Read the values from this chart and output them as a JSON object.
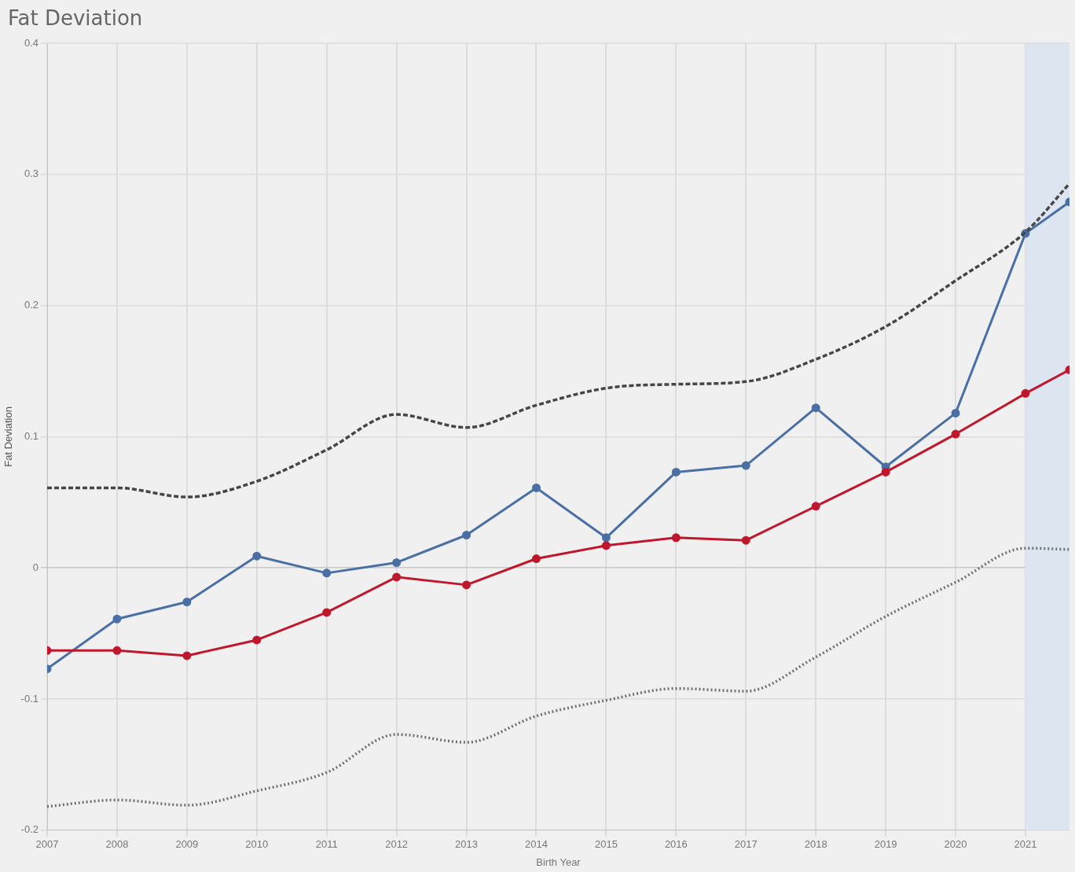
{
  "chart_data": {
    "type": "line",
    "title": "Fat Deviation",
    "xlabel": "Birth Year",
    "ylabel": "Fat Deviation",
    "xlim": [
      2007,
      2021.63
    ],
    "xticks": [
      2007,
      2008,
      2009,
      2010,
      2011,
      2012,
      2013,
      2014,
      2015,
      2016,
      2017,
      2018,
      2019,
      2020,
      2021
    ],
    "ylim": [
      -0.2,
      0.4
    ],
    "yticks": [
      -0.2,
      -0.1,
      0,
      0.1,
      0.2,
      0.3,
      0.4
    ],
    "x": [
      2007,
      2008,
      2009,
      2010,
      2011,
      2012,
      2013,
      2014,
      2015,
      2016,
      2017,
      2018,
      2019,
      2020,
      2021,
      2021.63
    ],
    "grid": true,
    "legend": false,
    "bands": [
      {
        "axis": "x",
        "from": 2021,
        "to": 2021.63,
        "color": "#dde5f1"
      }
    ],
    "series": [
      {
        "color": "#464646",
        "line_style": "dashed",
        "marker": "none",
        "values": [
          0.061,
          0.061,
          0.054,
          0.066,
          0.09,
          0.117,
          0.107,
          0.124,
          0.137,
          0.14,
          0.142,
          0.159,
          0.184,
          0.219,
          0.256,
          0.293
        ]
      },
      {
        "color": "#707070",
        "line_style": "dotted",
        "marker": "none",
        "values": [
          -0.182,
          -0.177,
          -0.181,
          -0.17,
          -0.156,
          -0.127,
          -0.133,
          -0.113,
          -0.101,
          -0.092,
          -0.094,
          -0.068,
          -0.037,
          -0.011,
          0.015,
          0.014
        ]
      },
      {
        "color": "#c0172d",
        "line_style": "solid",
        "marker": "circle",
        "values": [
          -0.063,
          -0.063,
          -0.067,
          -0.055,
          -0.034,
          -0.007,
          -0.013,
          0.007,
          0.017,
          0.023,
          0.021,
          0.047,
          0.073,
          0.102,
          0.133,
          0.151
        ]
      },
      {
        "color": "#4a6fa5",
        "line_style": "solid",
        "marker": "circle",
        "values": [
          -0.077,
          -0.039,
          -0.026,
          0.009,
          -0.004,
          0.004,
          0.025,
          0.061,
          0.023,
          0.073,
          0.078,
          0.122,
          0.077,
          0.118,
          0.255,
          0.279
        ]
      }
    ]
  }
}
